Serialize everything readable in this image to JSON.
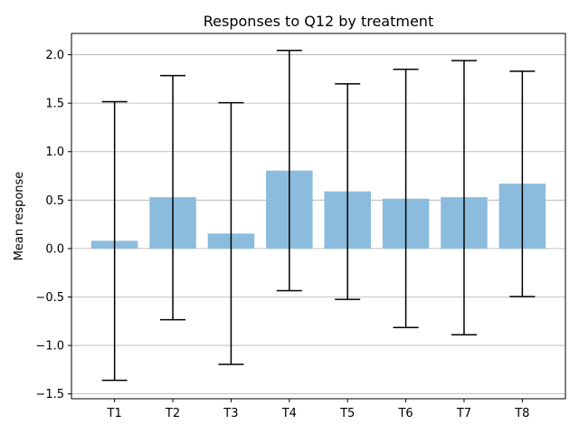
{
  "chart_data": {
    "type": "bar",
    "title": "Responses to Q12 by treatment",
    "xlabel": "",
    "ylabel": "Mean response",
    "categories": [
      "T1",
      "T2",
      "T3",
      "T4",
      "T5",
      "T6",
      "T7",
      "T8"
    ],
    "values": [
      0.08,
      0.53,
      0.155,
      0.805,
      0.59,
      0.515,
      0.53,
      0.67
    ],
    "error_low": [
      -1.36,
      -0.735,
      -1.195,
      -0.435,
      -0.525,
      -0.815,
      -0.89,
      -0.495
    ],
    "error_high": [
      1.515,
      1.785,
      1.505,
      2.045,
      1.7,
      1.85,
      1.94,
      1.83
    ],
    "ylim": [
      -1.55,
      2.22
    ],
    "yticks": [
      -1.5,
      -1.0,
      -0.5,
      0.0,
      0.5,
      1.0,
      1.5,
      2.0
    ],
    "ytick_labels": [
      "−1.5",
      "−1.0",
      "−0.5",
      "0.0",
      "0.5",
      "1.0",
      "1.5",
      "2.0"
    ],
    "grid": "horizontal",
    "legend": "none",
    "colors": {
      "bar": "#8cbcdd",
      "errorbar": "#000000",
      "grid": "#b0b0b0",
      "axes": "#000000"
    }
  }
}
